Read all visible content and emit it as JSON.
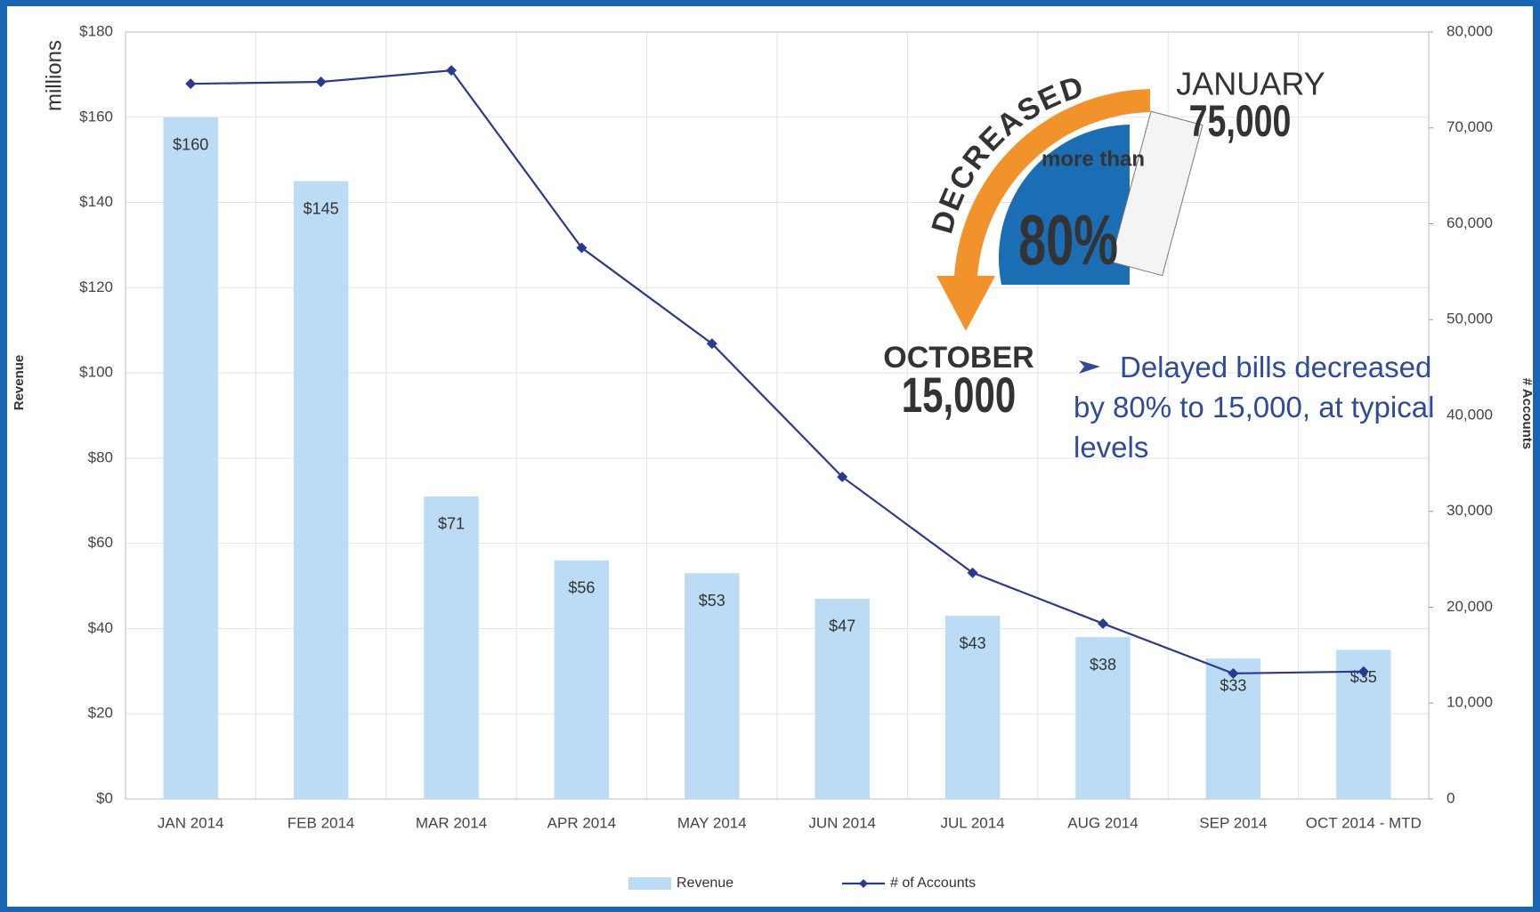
{
  "chart_data": {
    "type": "bar_line",
    "unit_label": "millions",
    "y_label": "Revenue",
    "y2_label": "# Accounts",
    "categories": [
      "JAN 2014",
      "FEB 2014",
      "MAR 2014",
      "APR 2014",
      "MAY 2014",
      "JUN 2014",
      "JUL 2014",
      "AUG 2014",
      "SEP 2014",
      "OCT 2014 - MTD"
    ],
    "series": [
      {
        "name": "Revenue",
        "type": "bar",
        "color": "#bcdcf6",
        "values": [
          160,
          145,
          71,
          56,
          53,
          47,
          43,
          38,
          33,
          35
        ],
        "value_labels": [
          "$160",
          "$145",
          "$71",
          "$56",
          "$53",
          "$47",
          "$43",
          "$38",
          "$33",
          "$35"
        ]
      },
      {
        "name": "# of Accounts",
        "type": "line",
        "axis": "y2",
        "color": "#2b3a8c",
        "values": [
          74600,
          74800,
          76000,
          57500,
          47500,
          33600,
          23600,
          18300,
          13100,
          13300
        ]
      }
    ],
    "ylim": [
      0,
      180
    ],
    "yticks": [
      {
        "value": 0,
        "label": "$0"
      },
      {
        "value": 20,
        "label": "$20"
      },
      {
        "value": 40,
        "label": "$40"
      },
      {
        "value": 60,
        "label": "$60"
      },
      {
        "value": 80,
        "label": "$80"
      },
      {
        "value": 100,
        "label": "$100"
      },
      {
        "value": 120,
        "label": "$120"
      },
      {
        "value": 140,
        "label": "$140"
      },
      {
        "value": 160,
        "label": "$160"
      },
      {
        "value": 180,
        "label": "$180"
      }
    ],
    "y2lim": [
      0,
      80000
    ],
    "y2ticks": [
      0,
      {
        "value": 10000,
        "label": "10,000"
      },
      {
        "value": 20000,
        "label": "20,000"
      },
      {
        "value": 30000,
        "label": "30,000"
      },
      {
        "value": 40000,
        "label": "40,000"
      },
      {
        "value": 50000,
        "label": "50,000"
      },
      {
        "value": 60000,
        "label": "60,000"
      },
      {
        "value": 70000,
        "label": "70,000"
      },
      {
        "value": 80000,
        "label": "80,000"
      }
    ],
    "grid": true,
    "legend": "bottom",
    "annotations": [
      "DECREASED",
      "more than",
      "80%",
      "JANUARY",
      "75,000",
      "OCTOBER",
      "15,000",
      "Delayed bills decreased by 80% to 15,000,  at typical levels"
    ]
  }
}
